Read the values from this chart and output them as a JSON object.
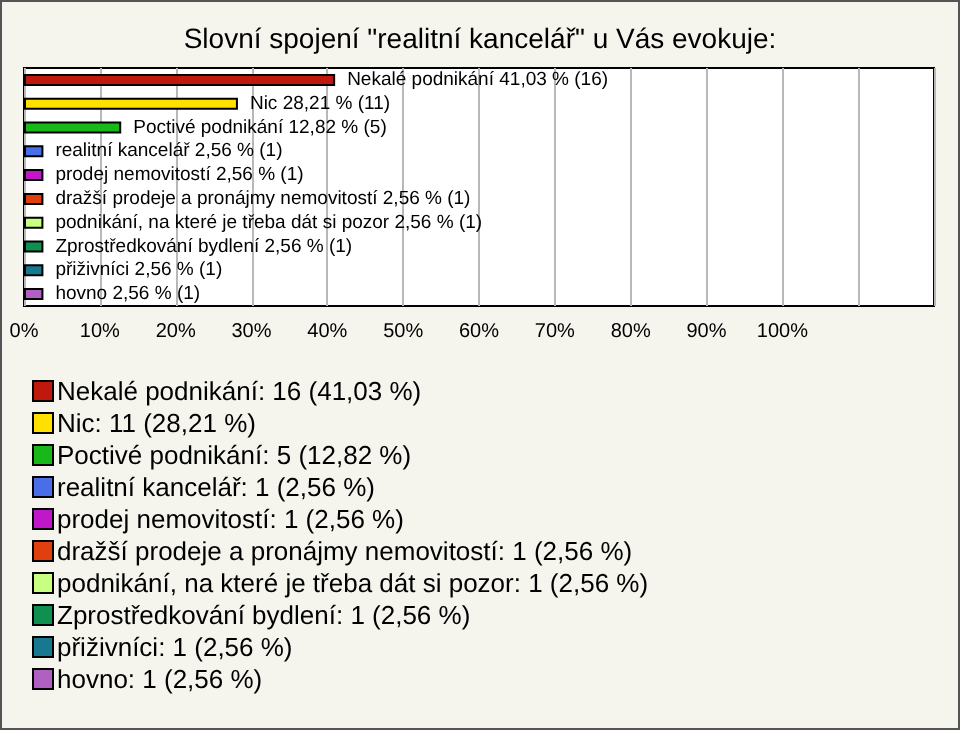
{
  "chart_data": {
    "type": "bar",
    "orientation": "horizontal",
    "stacked": true,
    "title": "Slovní spojení \"realitní kancelář\" u Vás evokuje:",
    "categories": [
      null,
      null,
      null,
      null,
      null,
      null,
      null,
      null,
      null,
      null
    ],
    "xlim": [
      0,
      120
    ],
    "xticks": [
      {
        "value": 0,
        "label": "0%"
      },
      {
        "value": 10,
        "label": "10%"
      },
      {
        "value": 20,
        "label": "20%"
      },
      {
        "value": 30,
        "label": "30%"
      },
      {
        "value": 40,
        "label": "40%"
      },
      {
        "value": 50,
        "label": "50%"
      },
      {
        "value": 60,
        "label": "60%"
      },
      {
        "value": 70,
        "label": "70%"
      },
      {
        "value": 80,
        "label": "80%"
      },
      {
        "value": 90,
        "label": "90%"
      },
      {
        "value": 100,
        "label": "100%"
      },
      {
        "value": 110,
        "label": null
      }
    ],
    "grid": "x",
    "legend": "bottom",
    "series": [
      {
        "name": "Nekalé podnikání: 16 (41,03 %)",
        "color": "#c0180c",
        "values": [
          41.03,
          null,
          null,
          null,
          null,
          null,
          null,
          null,
          null,
          null
        ],
        "value_labels": [
          "Nekalé podnikání 41,03 % (16)",
          null,
          null,
          null,
          null,
          null,
          null,
          null,
          null,
          null
        ]
      },
      {
        "name": "Nic: 11 (28,21 %)",
        "color": "#ffe000",
        "values": [
          null,
          28.21,
          null,
          null,
          null,
          null,
          null,
          null,
          null,
          null
        ],
        "value_labels": [
          null,
          "Nic 28,21 % (11)",
          null,
          null,
          null,
          null,
          null,
          null,
          null,
          null
        ]
      },
      {
        "name": "Poctivé podnikání: 5 (12,82 %)",
        "color": "#18b818",
        "values": [
          null,
          null,
          12.82,
          null,
          null,
          null,
          null,
          null,
          null,
          null
        ],
        "value_labels": [
          null,
          null,
          "Poctivé podnikání 12,82 % (5)",
          null,
          null,
          null,
          null,
          null,
          null,
          null
        ]
      },
      {
        "name": "realitní kancelář: 1 (2,56 %)",
        "color": "#4a6ee8",
        "values": [
          null,
          null,
          null,
          2.56,
          null,
          null,
          null,
          null,
          null,
          null
        ],
        "value_labels": [
          null,
          null,
          null,
          "realitní kancelář 2,56 % (1)",
          null,
          null,
          null,
          null,
          null,
          null
        ]
      },
      {
        "name": "prodej nemovitostí: 1 (2,56 %)",
        "color": "#c018c8",
        "values": [
          null,
          null,
          null,
          null,
          2.56,
          null,
          null,
          null,
          null,
          null
        ],
        "value_labels": [
          null,
          null,
          null,
          null,
          "prodej nemovitostí 2,56 % (1)",
          null,
          null,
          null,
          null,
          null
        ]
      },
      {
        "name": "dražší prodeje a pronájmy nemovitostí: 1 (2,56 %)",
        "color": "#e04010",
        "values": [
          null,
          null,
          null,
          null,
          null,
          2.56,
          null,
          null,
          null,
          null
        ],
        "value_labels": [
          null,
          null,
          null,
          null,
          null,
          "dražší prodeje a pronájmy nemovitostí 2,56 % (1)",
          null,
          null,
          null,
          null
        ]
      },
      {
        "name": "podnikání, na které je třeba dát si pozor: 1 (2,56 %)",
        "color": "#c8ff80",
        "values": [
          null,
          null,
          null,
          null,
          null,
          null,
          2.56,
          null,
          null,
          null
        ],
        "value_labels": [
          null,
          null,
          null,
          null,
          null,
          null,
          "podnikání, na které je třeba dát si pozor 2,56 % (1)",
          null,
          null,
          null
        ]
      },
      {
        "name": "Zprostředkování bydlení: 1 (2,56 %)",
        "color": "#109050",
        "values": [
          null,
          null,
          null,
          null,
          null,
          null,
          null,
          2.56,
          null,
          null
        ],
        "value_labels": [
          null,
          null,
          null,
          null,
          null,
          null,
          null,
          "Zprostředkování bydlení 2,56 % (1)",
          null,
          null
        ]
      },
      {
        "name": "přiživníci: 1 (2,56 %)",
        "color": "#187890",
        "values": [
          null,
          null,
          null,
          null,
          null,
          null,
          null,
          null,
          2.56,
          null
        ],
        "value_labels": [
          null,
          null,
          null,
          null,
          null,
          null,
          null,
          null,
          "přiživníci 2,56 % (1)",
          null
        ]
      },
      {
        "name": "hovno: 1 (2,56 %)",
        "color": "#b060c0",
        "values": [
          null,
          null,
          null,
          null,
          null,
          null,
          null,
          null,
          null,
          2.56
        ],
        "value_labels": [
          null,
          null,
          null,
          null,
          null,
          null,
          null,
          null,
          null,
          "hovno 2,56 % (1)"
        ]
      }
    ]
  }
}
